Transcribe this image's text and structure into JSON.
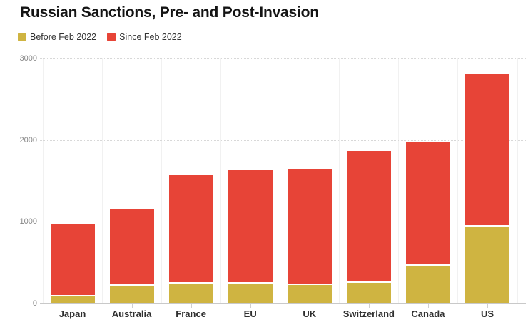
{
  "title": "Russian Sanctions, Pre- and Post-Invasion",
  "legend": [
    {
      "label": "Before Feb 2022",
      "color": "#cfb441"
    },
    {
      "label": "Since Feb 2022",
      "color": "#e74437"
    }
  ],
  "chart_data": {
    "type": "bar",
    "stacked": true,
    "title": "Russian Sanctions, Pre- and Post-Invasion",
    "categories": [
      "Japan",
      "Australia",
      "France",
      "EU",
      "UK",
      "Switzerland",
      "Canada",
      "US"
    ],
    "series": [
      {
        "name": "Before Feb 2022",
        "color": "#cfb441",
        "values": [
          87,
          215,
          248,
          248,
          230,
          256,
          458,
          944
        ]
      },
      {
        "name": "Since Feb 2022",
        "color": "#e74437",
        "values": [
          884,
          940,
          1326,
          1387,
          1422,
          1606,
          1517,
          1868
        ]
      }
    ],
    "totals": [
      971,
      1155,
      1574,
      1635,
      1652,
      1862,
      1975,
      2812
    ],
    "xlabel": "",
    "ylabel": "",
    "ylim": [
      0,
      3000
    ],
    "yticks": [
      0,
      1000,
      2000,
      3000
    ],
    "grid": "horizontal-dotted",
    "legend_position": "top-left"
  }
}
